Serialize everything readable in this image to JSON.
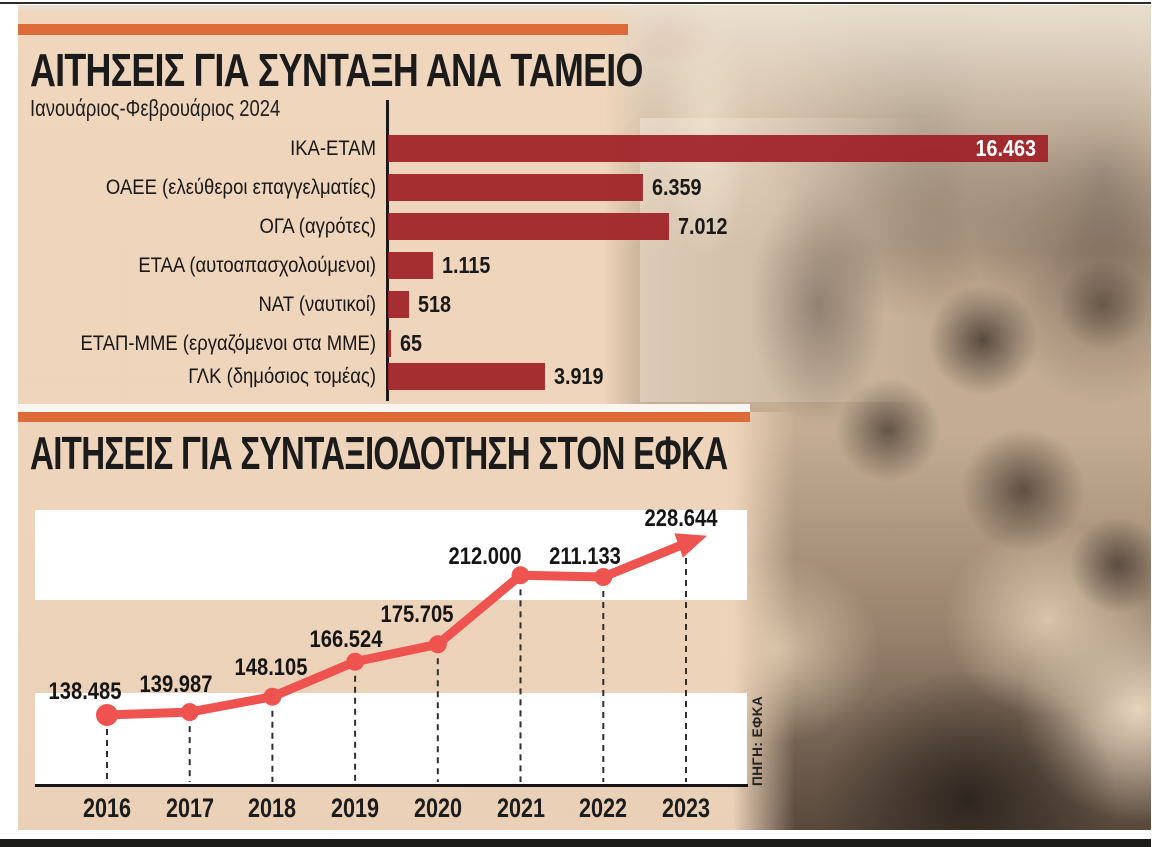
{
  "theme": {
    "accent_orange": "#dd6b3a",
    "panel_beige": "#f0d6bc",
    "bar_red": "#9e1f25",
    "line_red": "#ee5350",
    "band_white": "#ffffff",
    "text_dark": "#1b1b1b",
    "frame_dark": "#1e1c1a"
  },
  "section1": {
    "title": "ΑΙΤΗΣΕΙΣ ΓΙΑ ΣΥΝΤΑΞΗ ΑΝΑ ΤΑΜΕΙΟ",
    "subtitle": "Ιανουάριος-Φεβρουάριος 2024"
  },
  "section2": {
    "title": "ΑΙΤΗΣΕΙΣ ΓΙΑ ΣΥΝΤΑΞΙΟΔΟΤΗΣΗ ΣΤΟΝ ΕΦΚΑ",
    "source": "ΠΗΓΗ: ΕΦΚΑ"
  },
  "chart_data": [
    {
      "type": "bar",
      "orientation": "horizontal",
      "title": "ΑΙΤΗΣΕΙΣ ΓΙΑ ΣΥΝΤΑΞΗ ΑΝΑ ΤΑΜΕΙΟ",
      "subtitle": "Ιανουάριος-Φεβρουάριος 2024",
      "categories": [
        "ΙΚΑ-ΕΤΑΜ",
        "ΟΑΕΕ (ελεύθεροι επαγγελματίες)",
        "ΟΓΑ (αγρότες)",
        "ΕΤΑΑ (αυτοαπασχολούμενοι)",
        "ΝΑΤ (ναυτικοί)",
        "ΕΤΑΠ-ΜΜΕ (εργαζόμενοι στα ΜΜΕ)",
        "ΓΛΚ (δημόσιος τομέας)"
      ],
      "values": [
        16463,
        6359,
        7012,
        1115,
        518,
        65,
        3919
      ],
      "value_labels": [
        "16.463",
        "6.359",
        "7.012",
        "1.115",
        "518",
        "65",
        "3.919"
      ],
      "xlim": [
        0,
        16463
      ],
      "bar_color": "#9e1f25",
      "grid": false,
      "legend": false
    },
    {
      "type": "line",
      "title": "ΑΙΤΗΣΕΙΣ ΓΙΑ ΣΥΝΤΑΞΙΟΔΟΤΗΣΗ ΣΤΟΝ ΕΦΚΑ",
      "categories": [
        "2016",
        "2017",
        "2018",
        "2019",
        "2020",
        "2021",
        "2022",
        "2023"
      ],
      "values": [
        138485,
        139987,
        148105,
        166524,
        175705,
        212000,
        211133,
        228644
      ],
      "value_labels": [
        "138.485",
        "139.987",
        "148.105",
        "166.524",
        "175.705",
        "212.000",
        "211.133",
        "228.644"
      ],
      "ylim": [
        130000,
        235000
      ],
      "line_color": "#ee5350",
      "marker": "dot",
      "end_arrow": true,
      "grid": false,
      "legend": false,
      "source": "ΠΗΓΗ: ΕΦΚΑ"
    }
  ]
}
